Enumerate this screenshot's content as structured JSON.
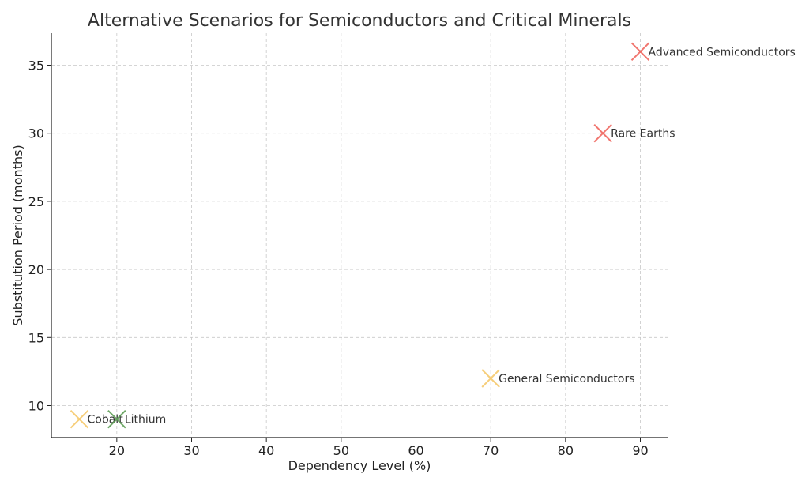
{
  "chart_data": {
    "type": "scatter",
    "title": "Alternative Scenarios for Semiconductors and Critical Minerals",
    "xlabel": "Dependency Level (%)",
    "ylabel": "Substitution Period (months)",
    "xlim": [
      11.25,
      93.75
    ],
    "ylim": [
      7.65,
      37.35
    ],
    "xticks": [
      20,
      30,
      40,
      50,
      60,
      70,
      80,
      90
    ],
    "yticks": [
      10,
      15,
      20,
      25,
      30,
      35
    ],
    "grid": true,
    "marker": "x",
    "points": [
      {
        "label": "Advanced Semiconductors",
        "x": 90,
        "y": 36,
        "color": "#f0675f"
      },
      {
        "label": "Rare Earths",
        "x": 85,
        "y": 30,
        "color": "#f0675f"
      },
      {
        "label": "General Semiconductors",
        "x": 70,
        "y": 12,
        "color": "#f5c96b"
      },
      {
        "label": "Cobalt",
        "x": 15,
        "y": 9,
        "color": "#f5c96b"
      },
      {
        "label": "Lithium",
        "x": 20,
        "y": 9,
        "color": "#5f9e58"
      }
    ]
  }
}
